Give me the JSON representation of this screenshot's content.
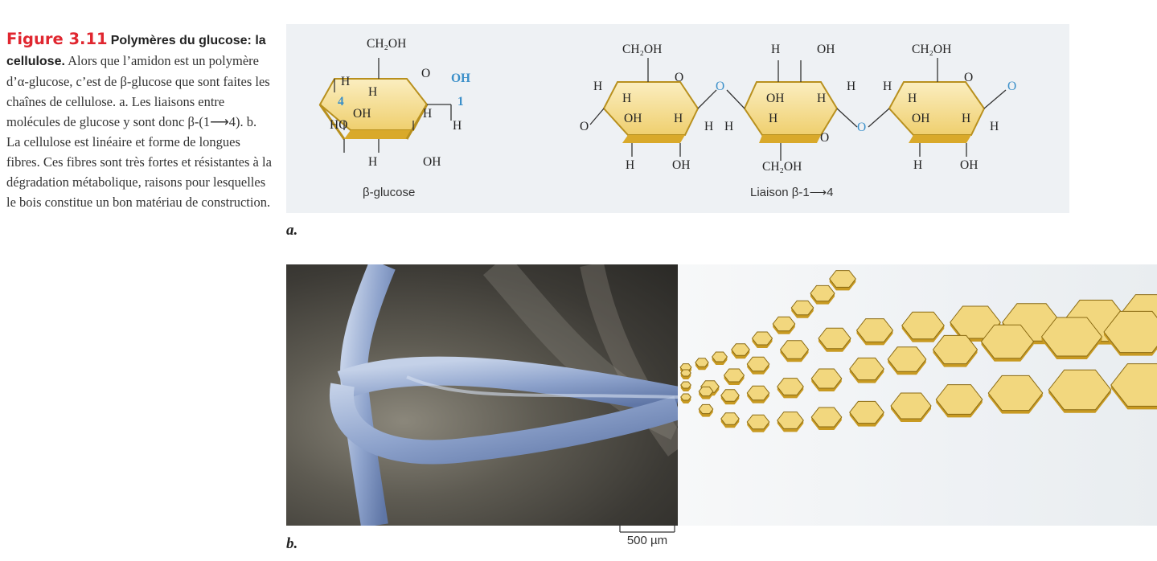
{
  "caption": {
    "figure_label": "Figure 3.11",
    "title": "Polymères du glucose: la cellulose.",
    "body": "Alors que l’amidon est un polymère d’α-glucose, c’est de β-glucose que sont faites les chaînes de cellulose. a. Les liaisons entre molécules de glucose y sont donc β-(1⟶4). b. La cellulose est linéaire et forme de longues fibres. Ces fibres sont très fortes et résistantes à la dégradation métabolique, raisons pour lesquelles le bois constitue un bon matériau de construction."
  },
  "panel_a": {
    "letter": "a.",
    "glucose_label": "β-glucose",
    "linkage_label": "Liaison β-1⟶4",
    "carbon_numbers": [
      "4",
      "1"
    ],
    "atoms": {
      "ch2oh": "CH₂OH",
      "oh": "OH",
      "ho": "HO",
      "h": "H",
      "o": "O"
    },
    "colors": {
      "ring_fill": "#f3dc8e",
      "ring_edge": "#c99b21",
      "oxygen": "#3a8fc9"
    }
  },
  "panel_b": {
    "letter": "b.",
    "scale_label": "500 µm",
    "colors": {
      "fiber": "#9fb2d4",
      "hexagon": "#f2d77e",
      "hexagon_edge": "#8a6a12"
    }
  }
}
